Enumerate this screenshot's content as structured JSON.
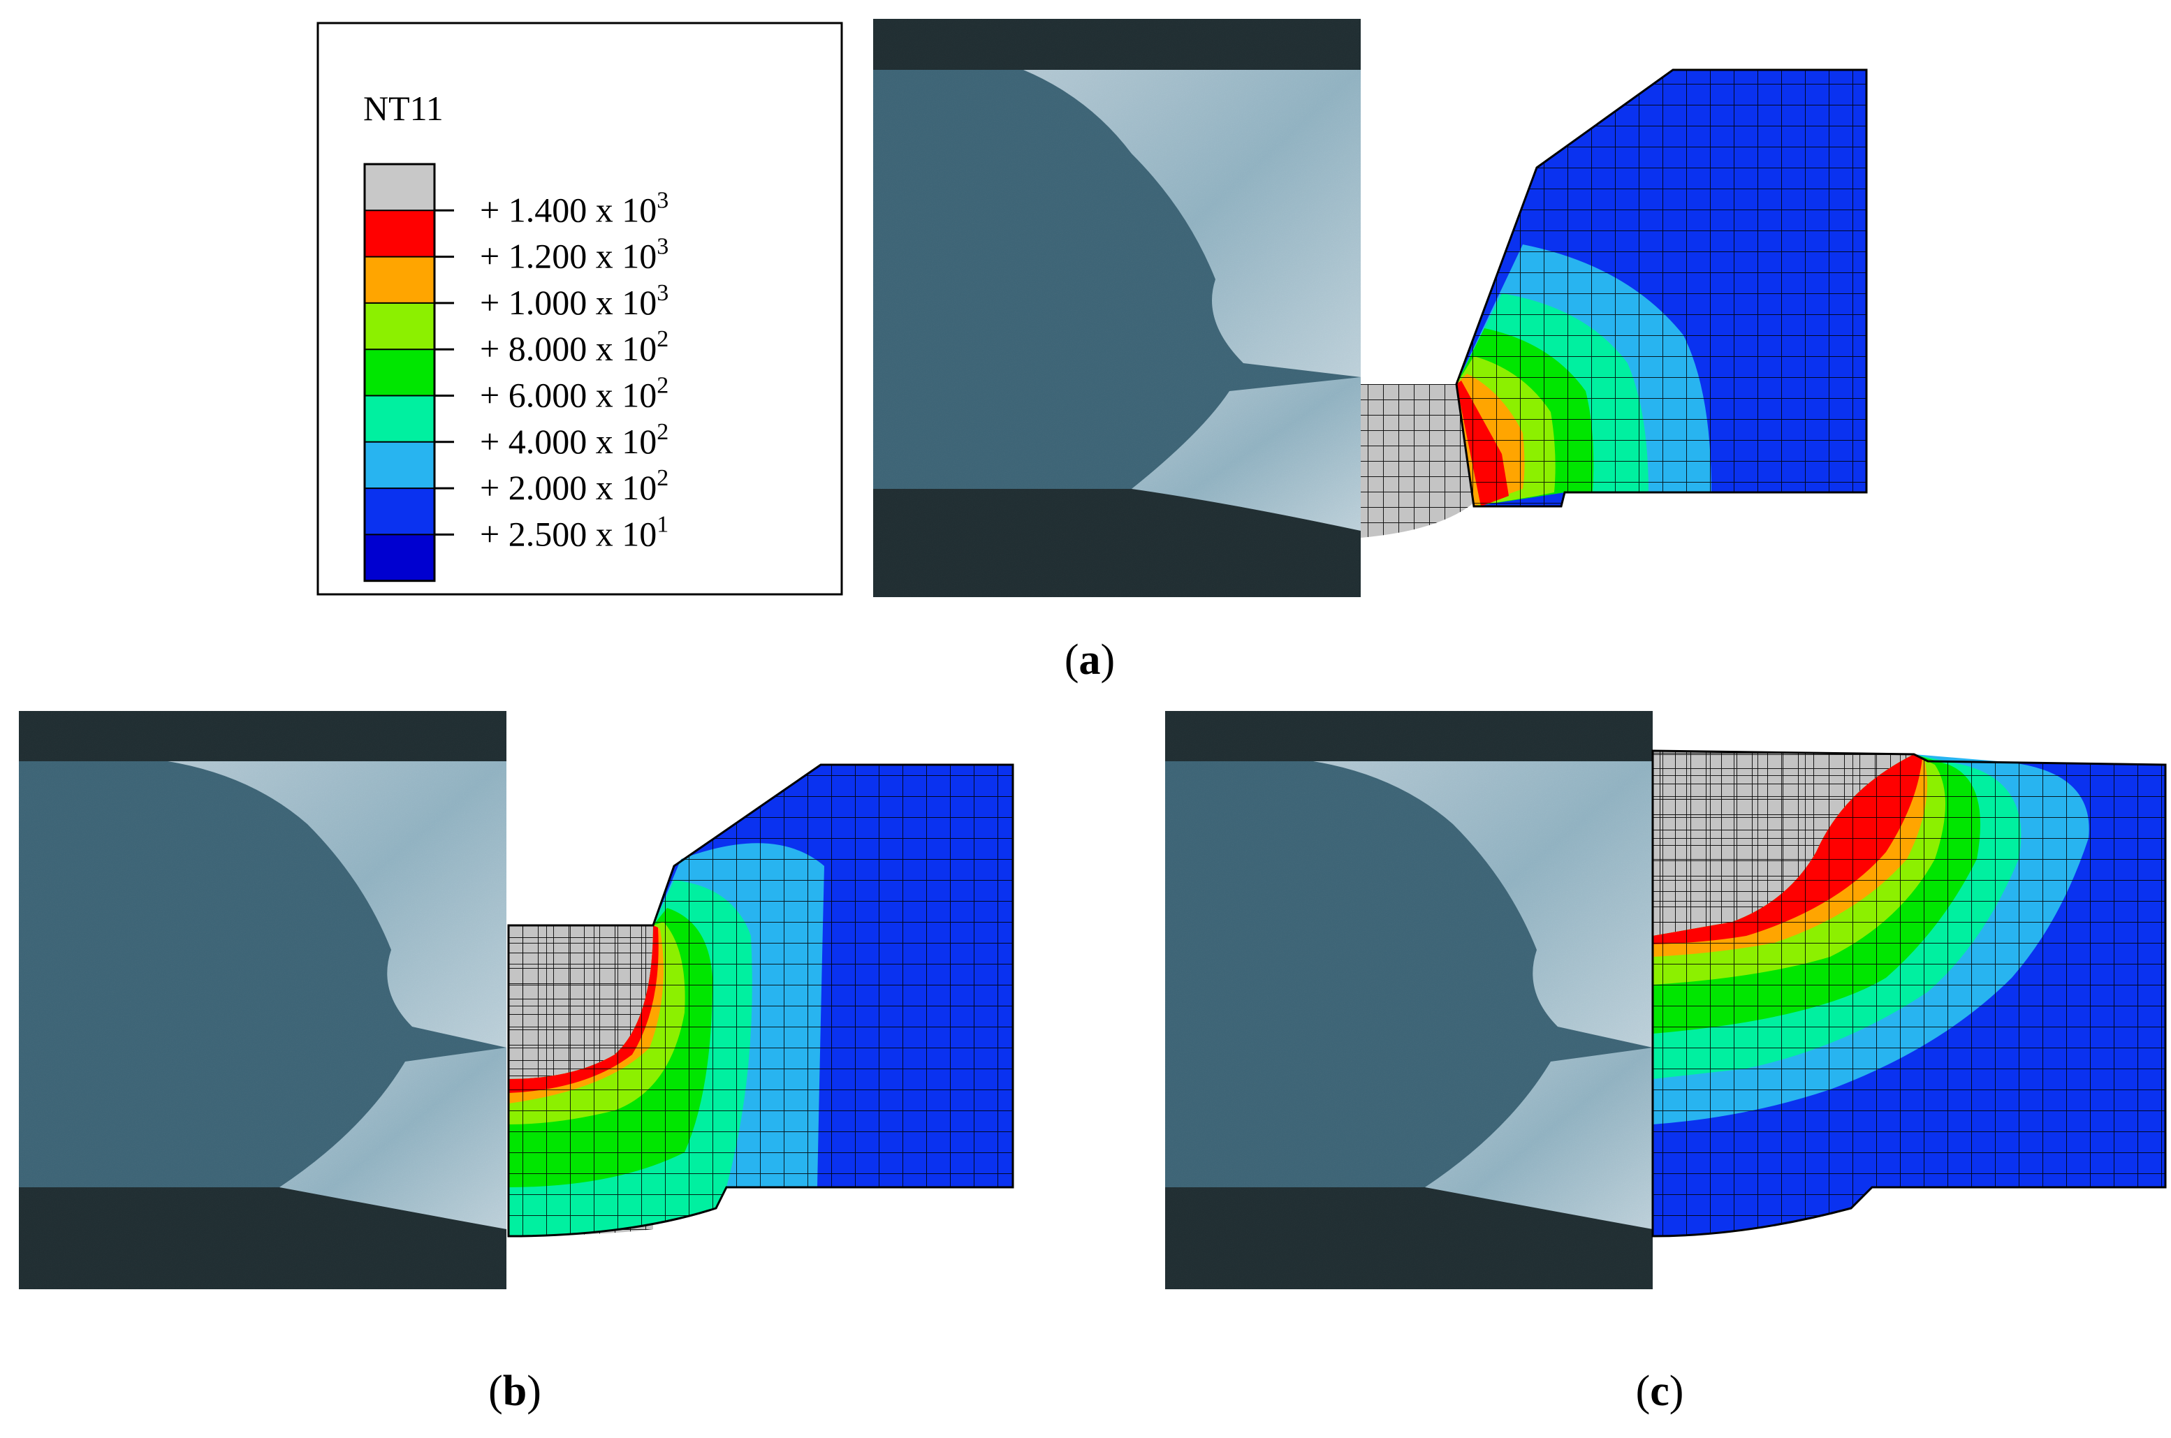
{
  "legend": {
    "variable": "NT11",
    "entries": [
      {
        "label": "+ 1.400 x 10",
        "exp": "3"
      },
      {
        "label": "+ 1.200 x 10",
        "exp": "3"
      },
      {
        "label": "+ 1.000 x 10",
        "exp": "3"
      },
      {
        "label": "+ 8.000 x 10",
        "exp": "2"
      },
      {
        "label": "+ 6.000 x 10",
        "exp": "2"
      },
      {
        "label": "+ 4.000 x 10",
        "exp": "2"
      },
      {
        "label": "+ 2.000 x 10",
        "exp": "2"
      },
      {
        "label": "+ 2.500 x 10",
        "exp": "1"
      }
    ],
    "colors": [
      "#c8c8c8",
      "#ff0000",
      "#ffa500",
      "#8cf000",
      "#00e600",
      "#00f0a0",
      "#28b4f0",
      "#0a32f0",
      "#0000d0"
    ]
  },
  "panels": {
    "a": {
      "caption_open": "(",
      "caption_letter": "a",
      "caption_close": ")"
    },
    "b": {
      "caption_open": "(",
      "caption_letter": "b",
      "caption_close": ")"
    },
    "c": {
      "caption_open": "(",
      "caption_letter": "c",
      "caption_close": ")"
    }
  }
}
